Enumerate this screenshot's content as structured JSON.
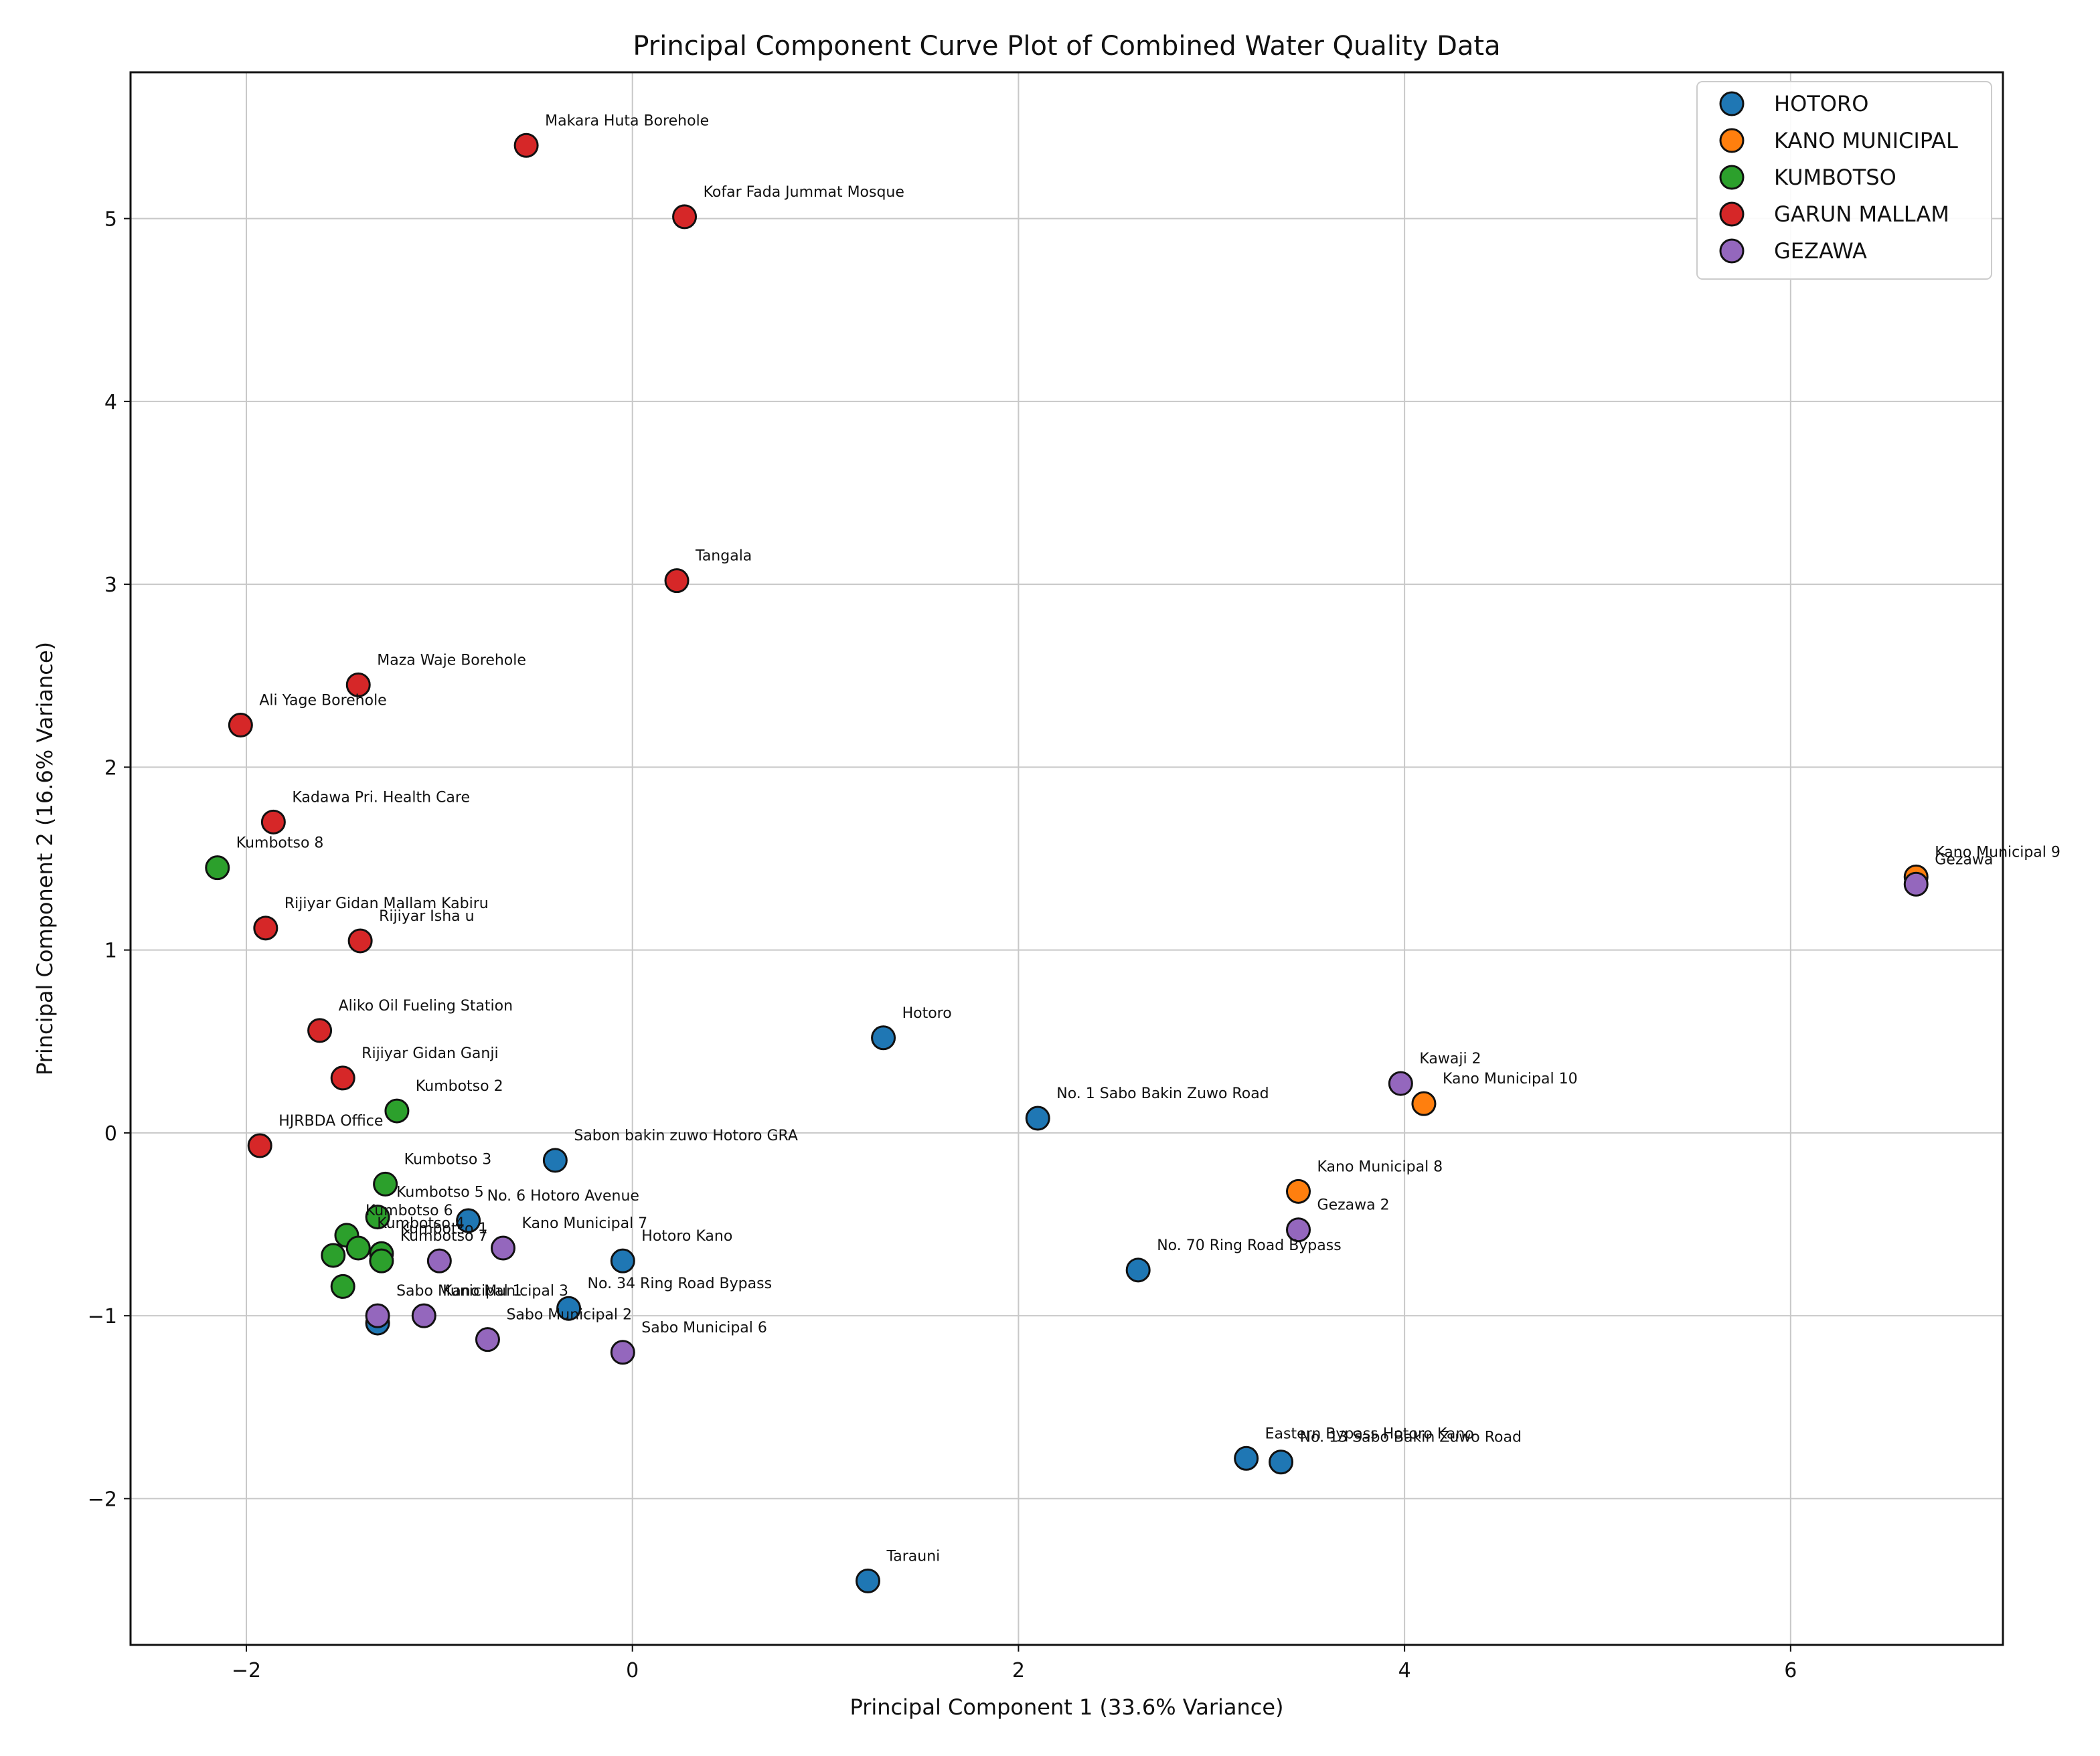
{
  "chart_data": {
    "type": "scatter",
    "title": "Principal Component Curve Plot of Combined Water Quality Data",
    "xlabel": "Principal Component 1 (33.6% Variance)",
    "ylabel": "Principal Component 2 (16.6% Variance)",
    "xlim": [
      -2.6,
      7.1
    ],
    "ylim": [
      -2.8,
      5.8
    ],
    "xticks": [
      -2,
      0,
      2,
      4,
      6
    ],
    "yticks": [
      -2,
      -1,
      0,
      1,
      2,
      3,
      4,
      5
    ],
    "grid": true,
    "legend_position": "top-right",
    "series": [
      {
        "name": "HOTORO",
        "color": "#1f77b4",
        "points": [
          {
            "x": 1.3,
            "y": 0.52,
            "label": "Hotoro"
          },
          {
            "x": 2.1,
            "y": 0.08,
            "label": "No. 1 Sabo Bakin Zuwo Road"
          },
          {
            "x": -0.4,
            "y": -0.15,
            "label": "Sabon bakin zuwo Hotoro GRA"
          },
          {
            "x": -0.85,
            "y": -0.48,
            "label": "No. 6 Hotoro Avenue"
          },
          {
            "x": -0.05,
            "y": -0.7,
            "label": "Hotoro Kano"
          },
          {
            "x": -0.33,
            "y": -0.96,
            "label": "No. 34 Ring Road Bypass"
          },
          {
            "x": 2.62,
            "y": -0.75,
            "label": "No. 70 Ring Road Bypass"
          },
          {
            "x": 3.18,
            "y": -1.78,
            "label": "Eastern Bypass Hotoro Kano"
          },
          {
            "x": 3.36,
            "y": -1.8,
            "label": "No. 13 Sabo Bakin Zuwo Road"
          },
          {
            "x": 1.22,
            "y": -2.45,
            "label": "Tarauni"
          },
          {
            "x": -1.32,
            "y": -1.04,
            "label": ""
          }
        ]
      },
      {
        "name": "KANO MUNICIPAL",
        "color": "#ff7f0e",
        "points": [
          {
            "x": 6.65,
            "y": 1.4,
            "label": "Kano Municipal 9"
          },
          {
            "x": 4.1,
            "y": 0.16,
            "label": "Kano Municipal 10"
          },
          {
            "x": 3.45,
            "y": -0.32,
            "label": "Kano Municipal 8"
          }
        ]
      },
      {
        "name": "KUMBOTSO",
        "color": "#2ca02c",
        "points": [
          {
            "x": -2.15,
            "y": 1.45,
            "label": "Kumbotso 8"
          },
          {
            "x": -1.22,
            "y": 0.12,
            "label": "Kumbotso 2"
          },
          {
            "x": -1.28,
            "y": -0.28,
            "label": "Kumbotso 3"
          },
          {
            "x": -1.32,
            "y": -0.46,
            "label": "Kumbotso 5"
          },
          {
            "x": -1.48,
            "y": -0.56,
            "label": "Kumbotso 6"
          },
          {
            "x": -1.42,
            "y": -0.63,
            "label": "Kumbotso 4"
          },
          {
            "x": -1.3,
            "y": -0.66,
            "label": "Kumbotso 1"
          },
          {
            "x": -1.55,
            "y": -0.67,
            "label": ""
          },
          {
            "x": -1.3,
            "y": -0.7,
            "label": "Kumbotso 7"
          },
          {
            "x": -1.5,
            "y": -0.84,
            "label": ""
          }
        ]
      },
      {
        "name": "GARUN MALLAM",
        "color": "#d62728",
        "points": [
          {
            "x": -0.55,
            "y": 5.4,
            "label": "Makara Huta Borehole"
          },
          {
            "x": 0.27,
            "y": 5.01,
            "label": "Kofar Fada Jummat Mosque"
          },
          {
            "x": 0.23,
            "y": 3.02,
            "label": "Tangala"
          },
          {
            "x": -1.42,
            "y": 2.45,
            "label": "Maza Waje Borehole"
          },
          {
            "x": -2.03,
            "y": 2.23,
            "label": "Ali Yage Borehole"
          },
          {
            "x": -1.86,
            "y": 1.7,
            "label": "Kadawa Pri. Health Care"
          },
          {
            "x": -1.9,
            "y": 1.12,
            "label": "Rijiyar Gidan Mallam Kabiru"
          },
          {
            "x": -1.41,
            "y": 1.05,
            "label": "Rijiyar Isha u"
          },
          {
            "x": -1.62,
            "y": 0.56,
            "label": "Aliko Oil Fueling Station"
          },
          {
            "x": -1.5,
            "y": 0.3,
            "label": "Rijiyar Gidan Ganji"
          },
          {
            "x": -1.93,
            "y": -0.07,
            "label": "HJRBDA Office"
          }
        ]
      },
      {
        "name": "GEZAWA",
        "color": "#9467bd",
        "points": [
          {
            "x": 6.65,
            "y": 1.36,
            "label": "Gezawa"
          },
          {
            "x": 3.98,
            "y": 0.27,
            "label": "Kawaji 2"
          },
          {
            "x": 3.45,
            "y": -0.53,
            "label": "Gezawa 2"
          },
          {
            "x": -0.67,
            "y": -0.63,
            "label": "Kano Municipal 7"
          },
          {
            "x": -1.0,
            "y": -0.7,
            "label": ""
          },
          {
            "x": -1.32,
            "y": -1.0,
            "label": "Sabo Municipal 1"
          },
          {
            "x": -1.08,
            "y": -1.0,
            "label": "Kano Municipal 3"
          },
          {
            "x": -0.75,
            "y": -1.13,
            "label": "Sabo Municipal 2"
          },
          {
            "x": -0.05,
            "y": -1.2,
            "label": "Sabo Municipal 6"
          }
        ]
      }
    ]
  }
}
